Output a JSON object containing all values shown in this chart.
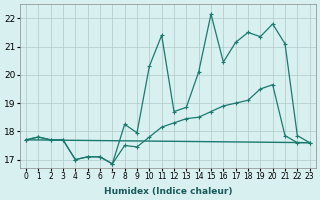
{
  "xlabel": "Humidex (Indice chaleur)",
  "ylabel": "",
  "background_color": "#d8f0f0",
  "grid_color": "#b0c8c8",
  "line_color": "#1a7a6e",
  "xlim": [
    -0.5,
    23.5
  ],
  "ylim": [
    16.7,
    22.5
  ],
  "yticks": [
    17,
    18,
    19,
    20,
    21,
    22
  ],
  "xtick_labels": [
    "0",
    "1",
    "2",
    "3",
    "4",
    "5",
    "6",
    "7",
    "8",
    "9",
    "10",
    "11",
    "12",
    "13",
    "14",
    "15",
    "16",
    "17",
    "18",
    "19",
    "20",
    "21",
    "22",
    "23"
  ],
  "series1_x": [
    0,
    1,
    2,
    3,
    4,
    5,
    6,
    7,
    8,
    9,
    10,
    11,
    12,
    13,
    14,
    15,
    16,
    17,
    18,
    19,
    20,
    21,
    22,
    23
  ],
  "series1_y": [
    17.7,
    17.8,
    17.7,
    17.7,
    17.0,
    17.1,
    17.1,
    16.85,
    17.5,
    17.45,
    17.8,
    18.15,
    18.3,
    18.45,
    18.5,
    18.7,
    18.9,
    19.0,
    19.1,
    19.5,
    19.65,
    17.85,
    17.6,
    17.6
  ],
  "series2_x": [
    0,
    1,
    2,
    3,
    4,
    5,
    6,
    7,
    8,
    9,
    10,
    11,
    12,
    13,
    14,
    15,
    16,
    17,
    18,
    19,
    20,
    21,
    22,
    23
  ],
  "series2_y": [
    17.7,
    17.8,
    17.7,
    17.7,
    17.0,
    17.1,
    17.1,
    16.85,
    18.25,
    17.95,
    20.3,
    21.4,
    18.7,
    18.85,
    20.1,
    22.15,
    20.45,
    21.15,
    21.5,
    21.35,
    21.8,
    21.1,
    17.85,
    17.6
  ],
  "series3_x": [
    0,
    23
  ],
  "series3_y": [
    17.7,
    17.6
  ]
}
